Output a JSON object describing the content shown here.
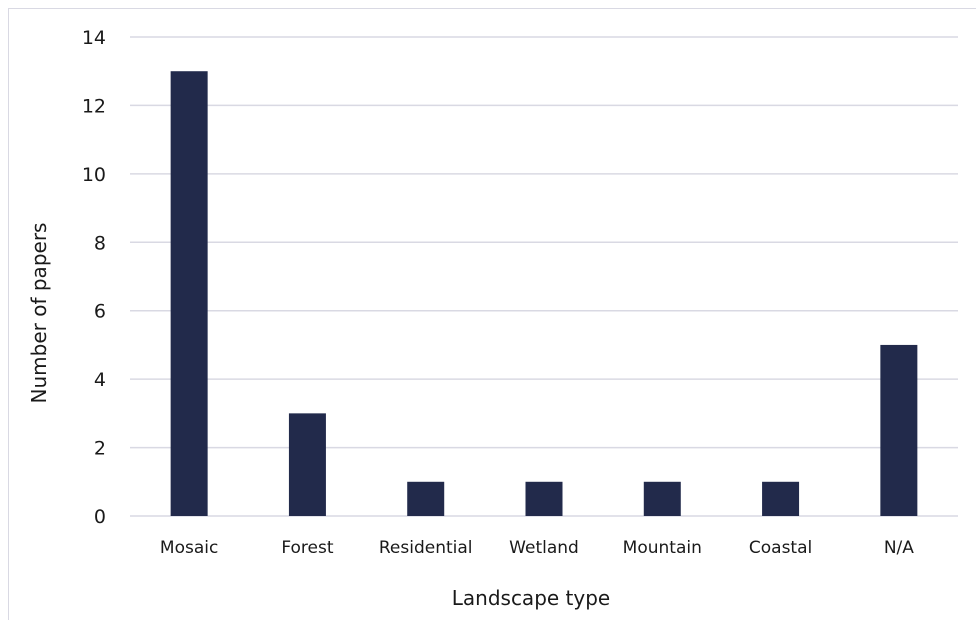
{
  "chart_data": {
    "type": "bar",
    "title": "",
    "xlabel": "Landscape type",
    "ylabel": "Number of papers",
    "categories": [
      "Mosaic",
      "Forest",
      "Residential",
      "Wetland",
      "Mountain",
      "Coastal",
      "N/A"
    ],
    "values": [
      13,
      3,
      1,
      1,
      1,
      1,
      5
    ],
    "ylim": [
      0,
      14
    ],
    "yticks": [
      0,
      2,
      4,
      6,
      8,
      10,
      12,
      14
    ],
    "grid": true,
    "legend": "none",
    "colors": {
      "bar": "#222a4b",
      "grid": "#d9d9e3",
      "text": "#1a1a1a"
    }
  }
}
